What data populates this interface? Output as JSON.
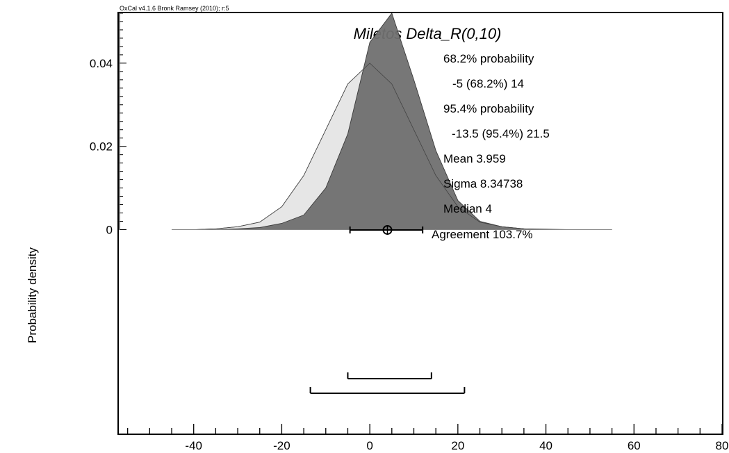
{
  "header": {
    "credit": "OxCal v4.1.6 Bronk Ramsey (2010); r:5"
  },
  "chart_data": {
    "type": "area",
    "title": "Miletos Delta_R(0,10)",
    "xlabel": "",
    "ylabel": "Probability density",
    "xlim": [
      -57,
      80
    ],
    "ylim": [
      -0.049,
      0.052
    ],
    "xticks": [
      -40,
      -20,
      0,
      20,
      40,
      60,
      80
    ],
    "xtick_labels": [
      "-40",
      "-20",
      "0",
      "20",
      "40",
      "60",
      "80"
    ],
    "yticks": [
      0,
      0.02,
      0.04
    ],
    "ytick_labels": [
      "0",
      "0.02",
      "0.04"
    ],
    "series": [
      {
        "role": "prior",
        "color": "#e6e6e6",
        "x": [
          -45,
          -40,
          -35,
          -30,
          -25,
          -20,
          -15,
          -10,
          -5,
          0,
          5,
          10,
          15,
          20,
          25,
          30,
          35,
          40,
          45,
          50,
          55
        ],
        "values": [
          0.0,
          0.0,
          0.0002,
          0.0007,
          0.0018,
          0.0055,
          0.013,
          0.024,
          0.035,
          0.04,
          0.035,
          0.024,
          0.013,
          0.0055,
          0.0018,
          0.0007,
          0.0002,
          0.0,
          0.0,
          0.0,
          0.0
        ]
      },
      {
        "role": "posterior",
        "color": "#707070",
        "x": [
          -35,
          -30,
          -25,
          -20,
          -15,
          -10,
          -5,
          0,
          5,
          10,
          15,
          20,
          25,
          30,
          35,
          40,
          45
        ],
        "values": [
          0.0,
          0.0002,
          0.0005,
          0.0015,
          0.0035,
          0.01,
          0.023,
          0.045,
          0.052,
          0.036,
          0.019,
          0.007,
          0.002,
          0.0007,
          0.0002,
          0.0001,
          0.0
        ]
      }
    ],
    "intervals": [
      {
        "label": "68.2%",
        "from": -5,
        "to": 14
      },
      {
        "label": "95.4%",
        "from": -13.5,
        "to": 21.5
      }
    ],
    "prior_interval": {
      "from": -4.5,
      "to": 12
    },
    "mean_marker": 4,
    "annotations": [
      "68.2% probability",
      "-5 (68.2%) 14",
      "95.4% probability",
      "-13.5 (95.4%) 21.5",
      "Mean 3.959",
      "Sigma 8.34738",
      "Median 4",
      "Agreement 103.7%"
    ]
  }
}
